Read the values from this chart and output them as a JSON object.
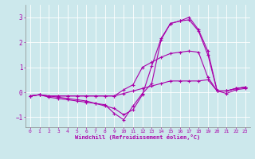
{
  "background_color": "#cce8ec",
  "grid_color": "#ffffff",
  "line_color": "#aa00aa",
  "x_label": "Windchill (Refroidissement éolien,°C)",
  "xlim": [
    -0.5,
    23.5
  ],
  "ylim": [
    -1.4,
    3.5
  ],
  "yticks": [
    -1,
    0,
    1,
    2,
    3
  ],
  "xticks": [
    0,
    1,
    2,
    3,
    4,
    5,
    6,
    7,
    8,
    9,
    10,
    11,
    12,
    13,
    14,
    15,
    16,
    17,
    18,
    19,
    20,
    21,
    22,
    23
  ],
  "series": [
    {
      "x": [
        0,
        1,
        2,
        3,
        4,
        5,
        6,
        7,
        8,
        9,
        10,
        11,
        12,
        13,
        14,
        15,
        16,
        17,
        18,
        19,
        20,
        21,
        22,
        23
      ],
      "y": [
        -0.15,
        -0.1,
        -0.15,
        -0.15,
        -0.15,
        -0.15,
        -0.15,
        -0.15,
        -0.15,
        -0.15,
        -0.05,
        0.05,
        0.15,
        0.25,
        0.35,
        0.45,
        0.45,
        0.45,
        0.45,
        0.5,
        0.05,
        0.05,
        0.15,
        0.2
      ]
    },
    {
      "x": [
        0,
        1,
        2,
        3,
        4,
        5,
        6,
        7,
        8,
        9,
        10,
        11,
        12,
        13,
        14,
        15,
        16,
        17,
        18,
        19,
        20,
        21,
        22,
        23
      ],
      "y": [
        -0.15,
        -0.1,
        -0.15,
        -0.2,
        -0.25,
        -0.3,
        -0.35,
        -0.45,
        -0.55,
        -0.65,
        -0.9,
        -0.7,
        -0.1,
        1.05,
        2.15,
        2.75,
        2.85,
        3.0,
        2.5,
        1.65,
        0.05,
        0.05,
        0.15,
        0.2
      ]
    },
    {
      "x": [
        0,
        1,
        2,
        3,
        4,
        5,
        6,
        7,
        8,
        9,
        10,
        11,
        12,
        13,
        14,
        15,
        16,
        17,
        18,
        19,
        20,
        21,
        22,
        23
      ],
      "y": [
        -0.15,
        -0.1,
        -0.15,
        -0.15,
        -0.15,
        -0.15,
        -0.15,
        -0.15,
        -0.15,
        -0.15,
        0.1,
        0.3,
        1.0,
        1.2,
        1.4,
        1.55,
        1.6,
        1.65,
        1.6,
        0.6,
        0.05,
        0.05,
        0.15,
        0.2
      ]
    },
    {
      "x": [
        0,
        1,
        2,
        3,
        4,
        5,
        6,
        7,
        8,
        9,
        10,
        11,
        12,
        13,
        14,
        15,
        16,
        17,
        18,
        19,
        20,
        21,
        22,
        23
      ],
      "y": [
        -0.15,
        -0.1,
        -0.2,
        -0.25,
        -0.3,
        -0.35,
        -0.4,
        -0.45,
        -0.5,
        -0.85,
        -1.1,
        -0.55,
        -0.05,
        0.35,
        2.1,
        2.75,
        2.85,
        2.9,
        2.45,
        1.5,
        0.05,
        -0.05,
        0.1,
        0.15
      ]
    }
  ]
}
